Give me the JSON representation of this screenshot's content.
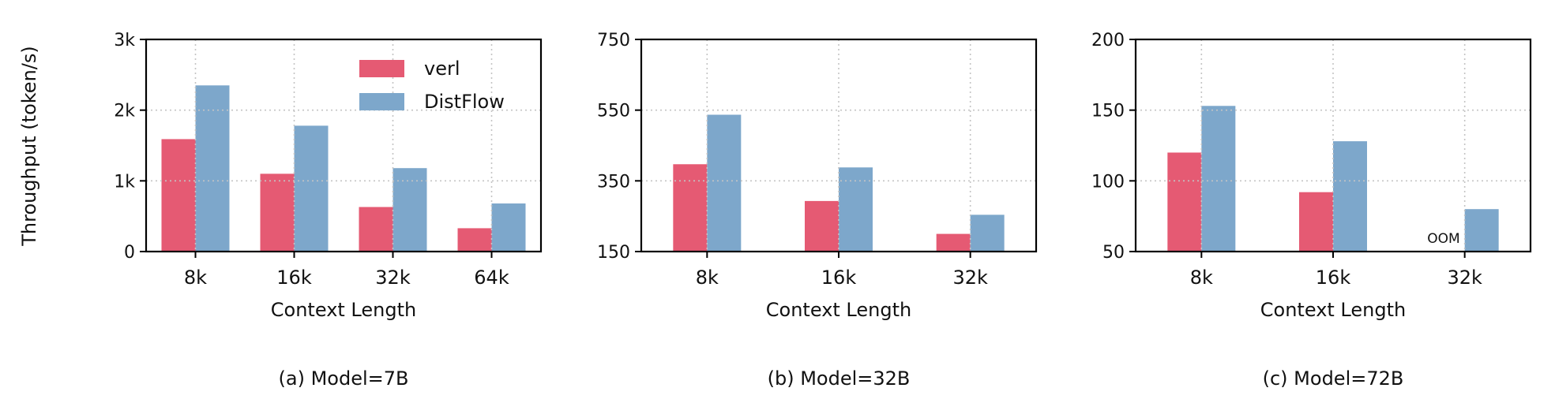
{
  "figure": {
    "ylabel": "Throughput (token/s)"
  },
  "colors": {
    "verl": "#e55a73",
    "DistFlow": "#7da7cb"
  },
  "chart_data": [
    {
      "type": "bar",
      "xlabel": "Context Length",
      "caption": "(a) Model=7B",
      "categories": [
        "8k",
        "16k",
        "32k",
        "64k"
      ],
      "ylim": [
        0,
        3000
      ],
      "yticks": [
        0,
        1000,
        2000,
        3000
      ],
      "ytick_labels": [
        "0",
        "1k",
        "2k",
        "3k"
      ],
      "grid": true,
      "legend": "top-right",
      "series": [
        {
          "name": "verl",
          "values": [
            1590,
            1100,
            630,
            330
          ]
        },
        {
          "name": "DistFlow",
          "values": [
            2350,
            1780,
            1180,
            680
          ]
        }
      ],
      "annotations": []
    },
    {
      "type": "bar",
      "xlabel": "Context Length",
      "caption": "(b) Model=32B",
      "categories": [
        "8k",
        "16k",
        "32k"
      ],
      "ylim": [
        150,
        750
      ],
      "yticks": [
        150,
        350,
        550,
        750
      ],
      "ytick_labels": [
        "150",
        "350",
        "550",
        "750"
      ],
      "grid": true,
      "series": [
        {
          "name": "verl",
          "values": [
            397,
            293,
            200
          ]
        },
        {
          "name": "DistFlow",
          "values": [
            537,
            388,
            254
          ]
        }
      ],
      "annotations": []
    },
    {
      "type": "bar",
      "xlabel": "Context Length",
      "caption": "(c) Model=72B",
      "categories": [
        "8k",
        "16k",
        "32k"
      ],
      "ylim": [
        50,
        200
      ],
      "yticks": [
        50,
        100,
        150,
        200
      ],
      "ytick_labels": [
        "50",
        "100",
        "150",
        "200"
      ],
      "grid": true,
      "series": [
        {
          "name": "verl",
          "values": [
            120,
            92,
            null
          ]
        },
        {
          "name": "DistFlow",
          "values": [
            153,
            128,
            80
          ]
        }
      ],
      "annotations": [
        {
          "text": "OOM",
          "category": "32k",
          "series": "verl"
        }
      ]
    }
  ]
}
